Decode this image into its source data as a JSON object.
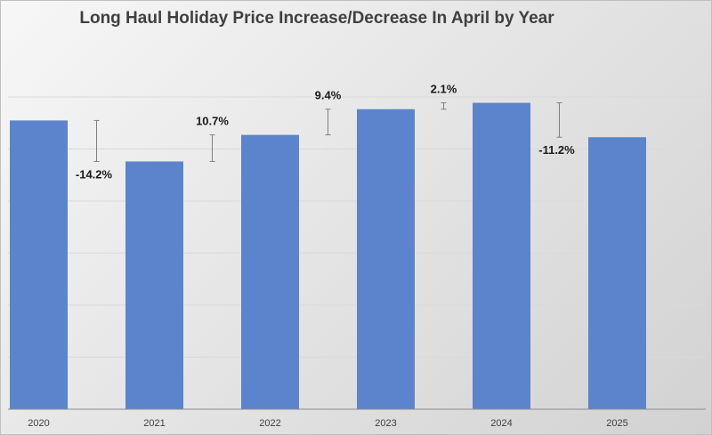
{
  "chart_data": {
    "type": "bar",
    "title": "Long Haul Holiday Price Increase/Decrease In April by Year",
    "xlabel": "",
    "ylabel": "",
    "categories": [
      "2020",
      "2021",
      "2022",
      "2023",
      "2024",
      "2025"
    ],
    "values": [
      100,
      85.8,
      95.0,
      103.9,
      106.1,
      94.2
    ],
    "changes": [
      {
        "between": [
          "2020",
          "2021"
        ],
        "label": "-14.2%"
      },
      {
        "between": [
          "2021",
          "2022"
        ],
        "label": "10.7%"
      },
      {
        "between": [
          "2022",
          "2023"
        ],
        "label": "9.4%"
      },
      {
        "between": [
          "2023",
          "2024"
        ],
        "label": "2.1%"
      },
      {
        "between": [
          "2024",
          "2025"
        ],
        "label": "-11.2%"
      }
    ],
    "ylim": [
      0,
      126
    ],
    "y_axis_labels_shown": false,
    "grid": true,
    "legend": "none",
    "bar_color": "#5b84cc",
    "error_bar_color": "#808080"
  }
}
